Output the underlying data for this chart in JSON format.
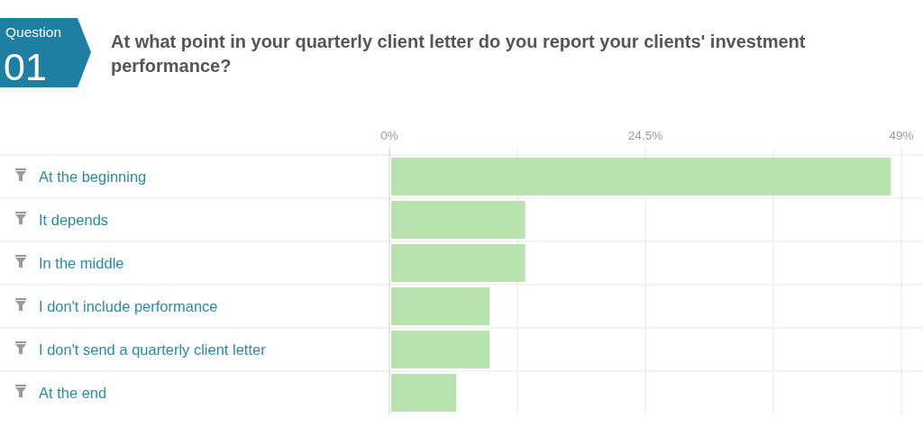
{
  "chart_data": {
    "type": "bar",
    "orientation": "horizontal",
    "title": "At what point in your quarterly client letter do you report your clients' investment performance?",
    "annotations": [
      "Question",
      "01"
    ],
    "categories": [
      "At the beginning",
      "It depends",
      "In the middle",
      "I don't include performance",
      "I don't send a quarterly client letter",
      "At the end"
    ],
    "values": [
      48,
      13,
      13,
      9.6,
      9.6,
      6.4
    ],
    "color": "#b8e2ae",
    "xlim": [
      0,
      49
    ],
    "xticks": [
      {
        "value": 0,
        "label": "0%"
      },
      {
        "value": 12.25,
        "label": null
      },
      {
        "value": 24.5,
        "label": "24.5%"
      },
      {
        "value": 36.75,
        "label": null
      },
      {
        "value": 49,
        "label": "49%"
      }
    ],
    "grid": true
  }
}
